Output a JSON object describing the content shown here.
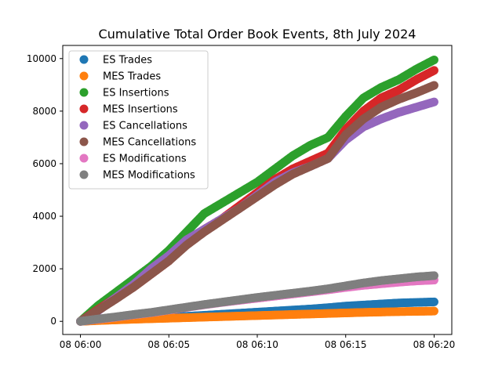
{
  "chart_data": {
    "type": "scatter",
    "title": "Cumulative Total Order Book Events, 8th July 2024",
    "xlabel": "",
    "ylabel": "",
    "x_ticks": [
      "08 06:00",
      "08 06:05",
      "08 06:10",
      "08 06:15",
      "08 06:20"
    ],
    "x_range_minutes": [
      -1,
      21
    ],
    "ylim": [
      -500,
      10500
    ],
    "y_ticks": [
      0,
      2000,
      4000,
      6000,
      8000,
      10000
    ],
    "grid": false,
    "legend_position": "top-left",
    "series": [
      {
        "name": "ES Trades",
        "color": "#1f77b4",
        "points": [
          [
            0,
            0
          ],
          [
            1,
            40
          ],
          [
            2,
            70
          ],
          [
            3,
            100
          ],
          [
            4,
            130
          ],
          [
            5,
            160
          ],
          [
            6,
            190
          ],
          [
            7,
            230
          ],
          [
            8,
            270
          ],
          [
            9,
            310
          ],
          [
            10,
            350
          ],
          [
            11,
            390
          ],
          [
            12,
            430
          ],
          [
            13,
            470
          ],
          [
            14,
            520
          ],
          [
            15,
            580
          ],
          [
            16,
            620
          ],
          [
            17,
            660
          ],
          [
            18,
            700
          ],
          [
            19,
            720
          ],
          [
            20,
            740
          ]
        ]
      },
      {
        "name": "MES Trades",
        "color": "#ff7f0e",
        "points": [
          [
            0,
            0
          ],
          [
            1,
            30
          ],
          [
            2,
            55
          ],
          [
            3,
            80
          ],
          [
            4,
            100
          ],
          [
            5,
            120
          ],
          [
            6,
            140
          ],
          [
            7,
            160
          ],
          [
            8,
            180
          ],
          [
            9,
            200
          ],
          [
            10,
            220
          ],
          [
            11,
            240
          ],
          [
            12,
            260
          ],
          [
            13,
            280
          ],
          [
            14,
            300
          ],
          [
            15,
            320
          ],
          [
            16,
            340
          ],
          [
            17,
            355
          ],
          [
            18,
            370
          ],
          [
            19,
            380
          ],
          [
            20,
            390
          ]
        ]
      },
      {
        "name": "ES Insertions",
        "color": "#2ca02c",
        "points": [
          [
            0,
            0
          ],
          [
            1,
            600
          ],
          [
            2,
            1100
          ],
          [
            3,
            1600
          ],
          [
            4,
            2100
          ],
          [
            5,
            2700
          ],
          [
            6,
            3400
          ],
          [
            7,
            4100
          ],
          [
            8,
            4500
          ],
          [
            9,
            4900
          ],
          [
            10,
            5300
          ],
          [
            11,
            5800
          ],
          [
            12,
            6300
          ],
          [
            13,
            6700
          ],
          [
            14,
            7000
          ],
          [
            15,
            7800
          ],
          [
            16,
            8500
          ],
          [
            17,
            8900
          ],
          [
            18,
            9200
          ],
          [
            19,
            9600
          ],
          [
            20,
            9950
          ]
        ]
      },
      {
        "name": "MES Insertions",
        "color": "#d62728",
        "points": [
          [
            0,
            0
          ],
          [
            1,
            450
          ],
          [
            2,
            900
          ],
          [
            3,
            1300
          ],
          [
            4,
            1800
          ],
          [
            5,
            2300
          ],
          [
            6,
            3000
          ],
          [
            7,
            3500
          ],
          [
            8,
            3900
          ],
          [
            9,
            4400
          ],
          [
            10,
            4900
          ],
          [
            11,
            5400
          ],
          [
            12,
            5800
          ],
          [
            13,
            6100
          ],
          [
            14,
            6400
          ],
          [
            15,
            7300
          ],
          [
            16,
            8000
          ],
          [
            17,
            8500
          ],
          [
            18,
            8800
          ],
          [
            19,
            9200
          ],
          [
            20,
            9550
          ]
        ]
      },
      {
        "name": "ES Cancellations",
        "color": "#9467bd",
        "points": [
          [
            0,
            0
          ],
          [
            1,
            400
          ],
          [
            2,
            900
          ],
          [
            3,
            1400
          ],
          [
            4,
            2000
          ],
          [
            5,
            2500
          ],
          [
            6,
            3100
          ],
          [
            7,
            3500
          ],
          [
            8,
            3900
          ],
          [
            9,
            4300
          ],
          [
            10,
            4800
          ],
          [
            11,
            5300
          ],
          [
            12,
            5650
          ],
          [
            13,
            5900
          ],
          [
            14,
            6200
          ],
          [
            15,
            6900
          ],
          [
            16,
            7400
          ],
          [
            17,
            7700
          ],
          [
            18,
            7950
          ],
          [
            19,
            8150
          ],
          [
            20,
            8350
          ]
        ]
      },
      {
        "name": "MES Cancellations",
        "color": "#8c564b",
        "points": [
          [
            0,
            0
          ],
          [
            1,
            420
          ],
          [
            2,
            850
          ],
          [
            3,
            1300
          ],
          [
            4,
            1800
          ],
          [
            5,
            2300
          ],
          [
            6,
            2900
          ],
          [
            7,
            3400
          ],
          [
            8,
            3850
          ],
          [
            9,
            4300
          ],
          [
            10,
            4750
          ],
          [
            11,
            5200
          ],
          [
            12,
            5600
          ],
          [
            13,
            5900
          ],
          [
            14,
            6200
          ],
          [
            15,
            7100
          ],
          [
            16,
            7700
          ],
          [
            17,
            8150
          ],
          [
            18,
            8450
          ],
          [
            19,
            8700
          ],
          [
            20,
            8980
          ]
        ]
      },
      {
        "name": "ES Modifications",
        "color": "#e377c2",
        "points": [
          [
            0,
            0
          ],
          [
            1,
            80
          ],
          [
            2,
            160
          ],
          [
            3,
            250
          ],
          [
            4,
            330
          ],
          [
            5,
            430
          ],
          [
            6,
            530
          ],
          [
            7,
            630
          ],
          [
            8,
            720
          ],
          [
            9,
            800
          ],
          [
            10,
            880
          ],
          [
            11,
            960
          ],
          [
            12,
            1040
          ],
          [
            13,
            1120
          ],
          [
            14,
            1200
          ],
          [
            15,
            1290
          ],
          [
            16,
            1370
          ],
          [
            17,
            1430
          ],
          [
            18,
            1490
          ],
          [
            19,
            1540
          ],
          [
            20,
            1570
          ]
        ]
      },
      {
        "name": "MES Modifications",
        "color": "#7f7f7f",
        "points": [
          [
            0,
            0
          ],
          [
            1,
            90
          ],
          [
            2,
            170
          ],
          [
            3,
            260
          ],
          [
            4,
            340
          ],
          [
            5,
            440
          ],
          [
            6,
            540
          ],
          [
            7,
            640
          ],
          [
            8,
            730
          ],
          [
            9,
            820
          ],
          [
            10,
            910
          ],
          [
            11,
            990
          ],
          [
            12,
            1070
          ],
          [
            13,
            1150
          ],
          [
            14,
            1240
          ],
          [
            15,
            1350
          ],
          [
            16,
            1460
          ],
          [
            17,
            1550
          ],
          [
            18,
            1620
          ],
          [
            19,
            1690
          ],
          [
            20,
            1740
          ]
        ]
      }
    ]
  }
}
